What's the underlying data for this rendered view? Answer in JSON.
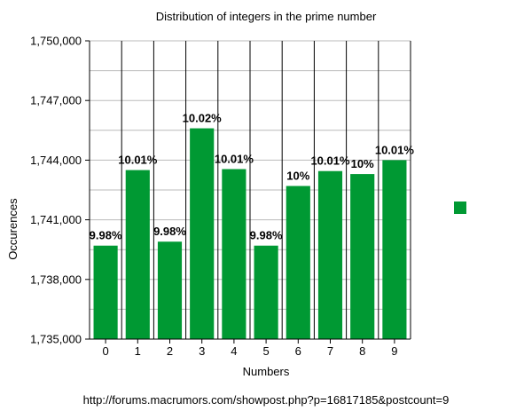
{
  "chart_data": {
    "type": "bar",
    "title": "Distribution of integers in the prime number",
    "xlabel": "Numbers",
    "ylabel": "Occurences",
    "categories": [
      "0",
      "1",
      "2",
      "3",
      "4",
      "5",
      "6",
      "7",
      "8",
      "9"
    ],
    "values": [
      1739700,
      1743500,
      1739900,
      1745600,
      1743550,
      1739700,
      1742700,
      1743450,
      1743300,
      1744000
    ],
    "data_labels": [
      "9.98%",
      "10.01%",
      "9.98%",
      "10.02%",
      "10.01%",
      "9.98%",
      "10%",
      "10.01%",
      "10%",
      "10.01%"
    ],
    "ylim": [
      1735000,
      1750000
    ],
    "y_ticks": [
      1735000,
      1738000,
      1741000,
      1744000,
      1747000,
      1750000
    ],
    "y_tick_labels": [
      "1,735,000",
      "1,738,000",
      "1,741,000",
      "1,744,000",
      "1,747,000",
      "1,750,000"
    ],
    "y_minor_step": 1500,
    "grid": true,
    "legend": "right",
    "bar_color": "#009933",
    "grid_color": "#bbbbbb"
  },
  "footer": {
    "source": "http://forums.macrumors.com/showpost.php?p=16817185&postcount=9"
  }
}
